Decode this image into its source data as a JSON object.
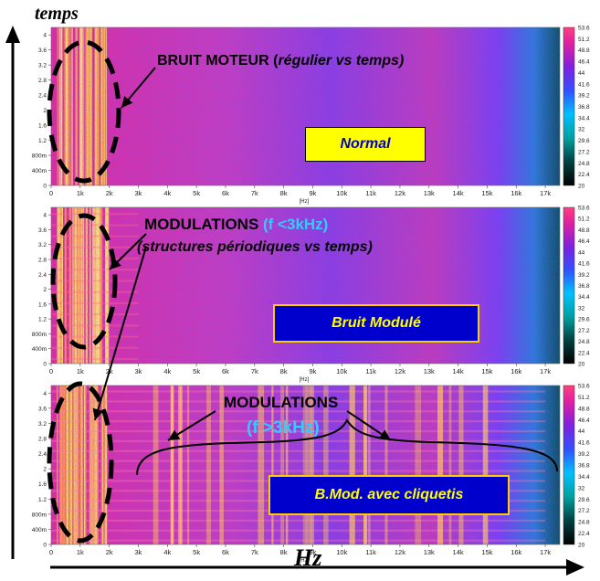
{
  "axes": {
    "y_title": "temps",
    "x_title": "Hz",
    "x_unit": "[Hz]",
    "x_ticks": [
      "0",
      "1k",
      "2k",
      "3k",
      "4k",
      "5k",
      "6k",
      "7k",
      "8k",
      "9k",
      "10k",
      "11k",
      "12k",
      "13k",
      "14k",
      "15k",
      "16k",
      "17k"
    ],
    "y_ticks": [
      "0",
      "400m",
      "800m",
      "1.2",
      "1.6",
      "2",
      "2.4",
      "2.8",
      "3.2",
      "3.6",
      "4"
    ],
    "colorbar_ticks": [
      "20",
      "22.4",
      "24.8",
      "27.2",
      "29.6",
      "32",
      "34.4",
      "36.8",
      "39.2",
      "41.6",
      "44",
      "46.4",
      "48.8",
      "51.2",
      "53.6"
    ]
  },
  "annotations": {
    "bruit_moteur": "BRUIT MOTEUR (",
    "bruit_moteur_it": "régulier vs temps)",
    "modulations_1": "MODULATIONS ",
    "modulations_1_f": "(f <3kHz)",
    "modulations_1_sub": "(structures périodiques vs temps)",
    "modulations_2": "MODULATIONS",
    "modulations_2_f": "(f >3kHz)"
  },
  "boxes": {
    "normal": "Normal",
    "bruit_module": "Bruit Modulé",
    "bmod": "B.Mod. avec cliquetis"
  },
  "colors": {
    "normal_box_bg": "#ffff00",
    "normal_box_text": "#0000cc",
    "blue_box_bg": "#0000cc",
    "blue_box_text": "#ffff00",
    "cyan_text": "#33ccff",
    "spectrogram_base": "#dd2a9e"
  },
  "chart_data": {
    "type": "heatmap",
    "title": "",
    "xlabel": "Hz",
    "ylabel": "temps",
    "xlim": [
      0,
      17500
    ],
    "ylim": [
      0,
      4.2
    ],
    "colorbar_range": [
      20,
      53.6
    ],
    "panels": [
      {
        "name": "Normal",
        "features": [
          "engine noise band 0–2 kHz",
          "uniform in time",
          "rolloff above 16 kHz"
        ]
      },
      {
        "name": "Bruit Modulé",
        "features": [
          "periodic time modulation below 3 kHz"
        ]
      },
      {
        "name": "B.Mod. avec cliquetis",
        "features": [
          "periodic time modulation below 3 kHz",
          "periodic modulation above 3 kHz"
        ]
      }
    ]
  }
}
